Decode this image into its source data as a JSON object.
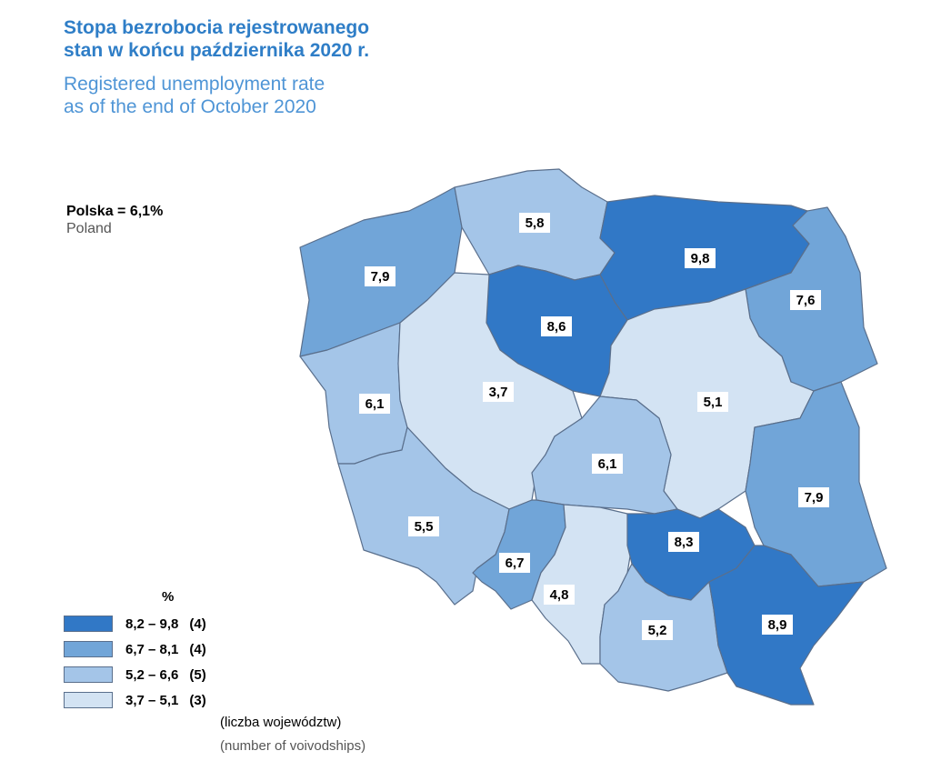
{
  "title": {
    "pl": [
      "Stopa bezrobocia rejestrowanego",
      "stan w końcu października 2020 r."
    ],
    "en": [
      "Registered unemployment rate",
      "as of the end of October 2020"
    ]
  },
  "national": {
    "value_label": "Polska = 6,1%",
    "en_label": "Poland"
  },
  "colors": {
    "c1": "#3178c6",
    "c2": "#71a5d8",
    "c3": "#a4c5e8",
    "c4": "#d3e3f3",
    "title_pl": "#2f7ec7",
    "title_en": "#4f95d6"
  },
  "legend": {
    "unit": "%",
    "classes": [
      {
        "range": "8,2 – 9,8",
        "count": "(4)",
        "color": "#3178c6"
      },
      {
        "range": "6,7 – 8,1",
        "count": "(4)",
        "color": "#71a5d8"
      },
      {
        "range": "5,2 – 6,6",
        "count": "(5)",
        "color": "#a4c5e8"
      },
      {
        "range": "3,7 – 5,1",
        "count": "(3)",
        "color": "#d3e3f3"
      }
    ],
    "note_pl": "(liczba województw)",
    "note_en": "(number of voivodships)"
  },
  "regions": [
    {
      "id": "zachodniopomorskie",
      "value": "7,9",
      "color": "#71a5d8"
    },
    {
      "id": "pomorskie",
      "value": "5,8",
      "color": "#a4c5e8"
    },
    {
      "id": "warminsko-mazurskie",
      "value": "9,8",
      "color": "#3178c6"
    },
    {
      "id": "podlaskie",
      "value": "7,6",
      "color": "#71a5d8"
    },
    {
      "id": "kujawsko-pomorskie",
      "value": "8,6",
      "color": "#3178c6"
    },
    {
      "id": "lubuskie",
      "value": "6,1",
      "color": "#a4c5e8"
    },
    {
      "id": "wielkopolskie",
      "value": "3,7",
      "color": "#d3e3f3"
    },
    {
      "id": "mazowieckie",
      "value": "5,1",
      "color": "#d3e3f3"
    },
    {
      "id": "lodzkie",
      "value": "6,1",
      "color": "#a4c5e8"
    },
    {
      "id": "lubelskie",
      "value": "7,9",
      "color": "#71a5d8"
    },
    {
      "id": "dolnoslaskie",
      "value": "5,5",
      "color": "#a4c5e8"
    },
    {
      "id": "opolskie",
      "value": "6,7",
      "color": "#71a5d8"
    },
    {
      "id": "slaskie",
      "value": "4,8",
      "color": "#d3e3f3"
    },
    {
      "id": "swietokrzyskie",
      "value": "8,3",
      "color": "#3178c6"
    },
    {
      "id": "malopolskie",
      "value": "5,2",
      "color": "#a4c5e8"
    },
    {
      "id": "podkarpackie",
      "value": "8,9",
      "color": "#3178c6"
    }
  ]
}
